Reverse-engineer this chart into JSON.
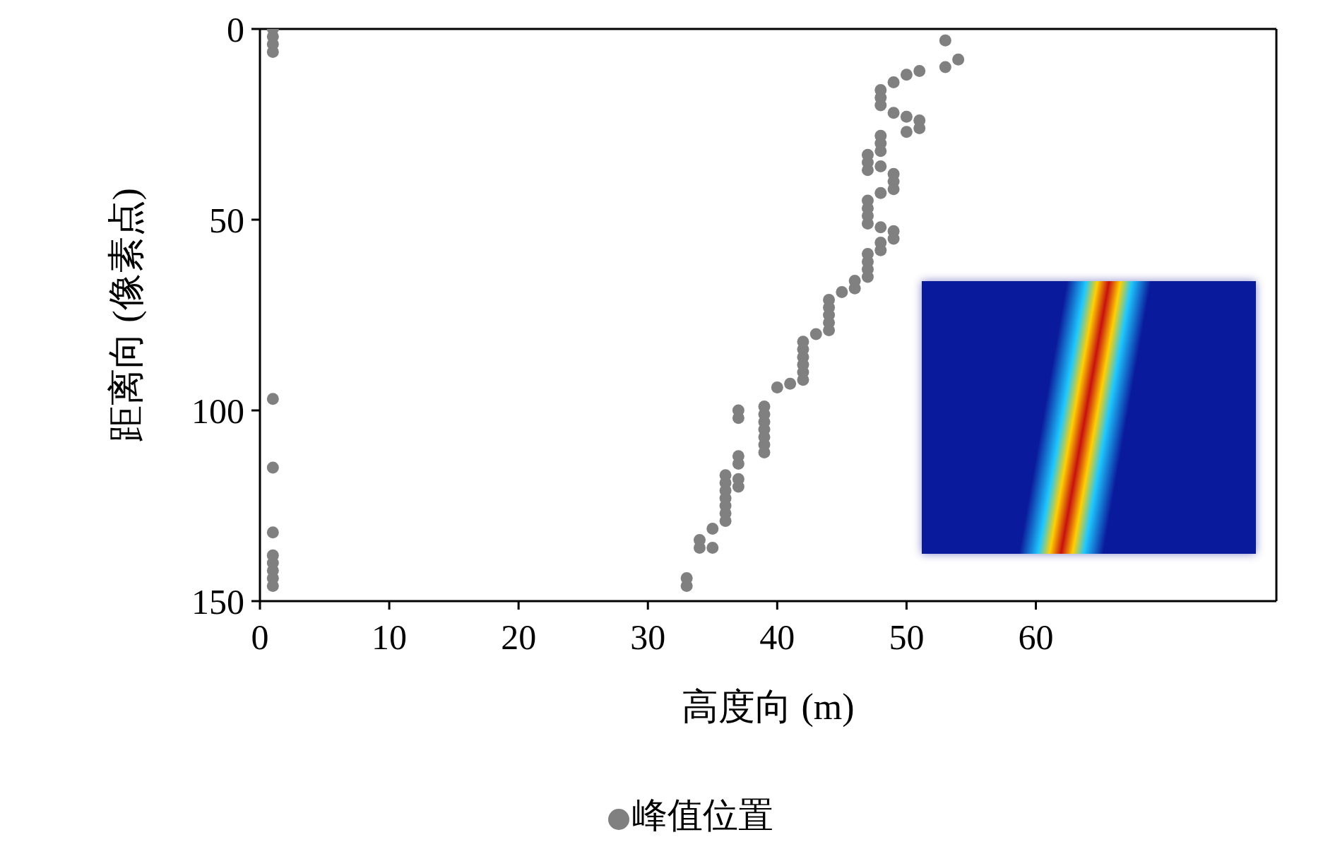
{
  "chart_data": {
    "type": "scatter",
    "xlabel": "高度向 (m)",
    "ylabel": "距离向 (像素点)",
    "x": [
      1,
      1,
      1,
      1,
      1,
      1,
      1,
      1,
      1,
      1,
      1,
      1,
      53,
      54,
      53,
      51,
      50,
      49,
      48,
      48,
      48,
      49,
      50,
      51,
      51,
      50,
      48,
      48,
      48,
      47,
      47,
      48,
      47,
      49,
      49,
      49,
      48,
      47,
      47,
      47,
      47,
      48,
      49,
      49,
      48,
      48,
      47,
      47,
      47,
      47,
      46,
      46,
      45,
      44,
      44,
      44,
      44,
      44,
      43,
      42,
      42,
      42,
      42,
      42,
      42,
      41,
      40,
      39,
      39,
      39,
      39,
      39,
      39,
      39,
      37,
      37,
      37,
      37,
      37,
      37,
      36,
      36,
      36,
      36,
      36,
      36,
      36,
      35,
      34,
      34,
      35,
      33,
      33
    ],
    "series": [
      {
        "name": "峰值位置",
        "color": "#808080",
        "values": [
          0,
          2,
          4,
          6,
          97,
          115,
          132,
          138,
          140,
          142,
          144,
          146,
          3,
          8,
          10,
          11,
          12,
          14,
          16,
          18,
          20,
          22,
          23,
          24,
          26,
          27,
          28,
          30,
          32,
          33,
          35,
          36,
          37,
          38,
          40,
          42,
          43,
          45,
          47,
          49,
          51,
          52,
          53,
          55,
          56,
          58,
          59,
          61,
          63,
          65,
          66,
          68,
          69,
          71,
          73,
          75,
          77,
          79,
          80,
          82,
          84,
          86,
          88,
          90,
          92,
          93,
          94,
          99,
          101,
          103,
          105,
          107,
          109,
          111,
          100,
          102,
          112,
          114,
          118,
          120,
          117,
          119,
          121,
          123,
          125,
          127,
          129,
          131,
          134,
          136,
          136,
          144,
          146
        ]
      }
    ],
    "xlim": [
      0,
      78.6
    ],
    "xticks": [
      0,
      10,
      20,
      30,
      40,
      50,
      60
    ],
    "ylim": [
      150,
      0
    ],
    "yticks": [
      0,
      50,
      100,
      150
    ],
    "marker": "circle",
    "legend": "bottom",
    "grid": false
  }
}
